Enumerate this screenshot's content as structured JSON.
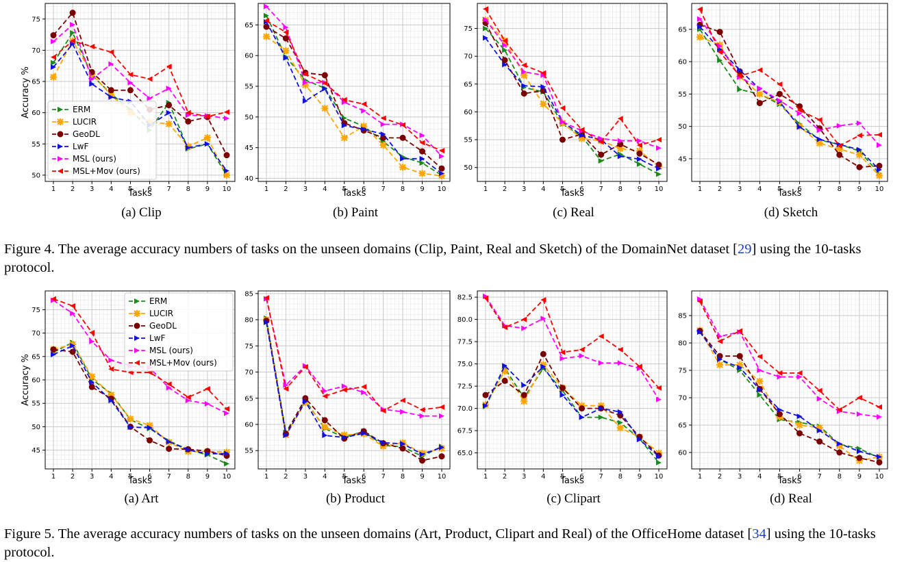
{
  "figures": [
    {
      "caption": {
        "label": "Figure 4.",
        "text": " The average accuracy numbers of tasks on the unseen domains (Clip, Paint, Real and Sketch) of the DomainNet dataset [",
        "cite": "29",
        "tail": "] using the 10-tasks protocol."
      }
    },
    {
      "caption": {
        "label": "Figure 5.",
        "text": " The average accuracy numbers of tasks on the unseen domains (Art, Product, Clipart and Real) of the OfficeHome dataset [",
        "cite": "34",
        "tail": "] using the 10-tasks protocol."
      }
    }
  ],
  "series_styles": [
    {
      "name": "ERM",
      "color": "#1a8a1a",
      "marker": "triangle-right"
    },
    {
      "name": "LUCIR",
      "color": "#ffa500",
      "marker": "x"
    },
    {
      "name": "GeoDL",
      "color": "#7a0000",
      "marker": "circle"
    },
    {
      "name": "LwF",
      "color": "#1010e0",
      "marker": "triangle-right"
    },
    {
      "name": "MSL (ours)",
      "color": "#ff00ff",
      "marker": "triangle-right"
    },
    {
      "name": "MSL+Mov (ours)",
      "color": "#ff0000",
      "marker": "triangle-left"
    }
  ],
  "chart_data": [
    {
      "type": "line",
      "subtitle": "(a) Clip",
      "xlabel": "Tasks",
      "ylabel": "Accuracy %",
      "x": [
        1,
        2,
        3,
        4,
        5,
        6,
        7,
        8,
        9,
        10
      ],
      "ylim": [
        49,
        77.5
      ],
      "yticks": [
        50,
        55,
        60,
        65,
        70,
        75
      ],
      "legend": "lower-left",
      "series": [
        {
          "name": "ERM",
          "values": [
            68.0,
            72.8,
            66.0,
            63.0,
            60.5,
            57.2,
            61.6,
            54.2,
            55.0,
            50.0
          ]
        },
        {
          "name": "LUCIR",
          "values": [
            65.7,
            71.5,
            66.2,
            62.8,
            60.0,
            58.5,
            58.2,
            54.6,
            56.0,
            50.0
          ]
        },
        {
          "name": "GeoDL",
          "values": [
            72.4,
            76.0,
            66.5,
            63.6,
            63.6,
            60.5,
            61.2,
            58.6,
            59.3,
            53.2
          ]
        },
        {
          "name": "LwF",
          "values": [
            67.3,
            71.0,
            64.6,
            62.5,
            61.8,
            58.0,
            60.0,
            54.4,
            55.0,
            50.7
          ]
        },
        {
          "name": "MSL (ours)",
          "values": [
            71.4,
            74.1,
            65.4,
            67.8,
            64.8,
            62.3,
            63.9,
            59.6,
            59.5,
            59.1
          ]
        },
        {
          "name": "MSL+Mov (ours)",
          "values": [
            68.9,
            71.5,
            70.6,
            69.7,
            66.1,
            65.4,
            67.4,
            60.0,
            59.4,
            60.1
          ]
        }
      ]
    },
    {
      "type": "line",
      "subtitle": "(b) Paint",
      "xlabel": "Tasks",
      "ylabel": "",
      "x": [
        1,
        2,
        3,
        4,
        5,
        6,
        7,
        8,
        9,
        10
      ],
      "ylim": [
        39.5,
        68.5
      ],
      "yticks": [
        40,
        45,
        50,
        55,
        60,
        65
      ],
      "legend": "none",
      "series": [
        {
          "name": "ERM",
          "values": [
            66.5,
            59.8,
            56.0,
            54.7,
            49.8,
            48.5,
            46.0,
            43.5,
            42.5,
            40.5
          ]
        },
        {
          "name": "LUCIR",
          "values": [
            63.1,
            60.8,
            55.2,
            51.4,
            46.6,
            48.5,
            45.4,
            41.8,
            40.8,
            40.4
          ]
        },
        {
          "name": "GeoDL",
          "values": [
            64.7,
            62.8,
            57.2,
            56.8,
            49.0,
            47.8,
            46.6,
            46.6,
            44.4,
            41.6
          ]
        },
        {
          "name": "LwF",
          "values": [
            65.5,
            59.6,
            52.6,
            54.6,
            48.6,
            48.0,
            47.2,
            43.2,
            43.2,
            40.8
          ]
        },
        {
          "name": "MSL (ours)",
          "values": [
            68.0,
            64.6,
            55.6,
            55.6,
            52.4,
            51.0,
            48.8,
            48.8,
            47.0,
            43.6
          ]
        },
        {
          "name": "MSL+Mov (ours)",
          "values": [
            65.7,
            63.8,
            57.0,
            55.5,
            52.8,
            52.1,
            49.8,
            48.7,
            45.8,
            44.5
          ]
        }
      ]
    },
    {
      "type": "line",
      "subtitle": "(c) Real",
      "xlabel": "Tasks",
      "ylabel": "",
      "x": [
        1,
        2,
        3,
        4,
        5,
        6,
        7,
        8,
        9,
        10
      ],
      "ylim": [
        47.5,
        79.5
      ],
      "yticks": [
        50,
        55,
        60,
        65,
        70,
        75
      ],
      "legend": "none",
      "series": [
        {
          "name": "ERM",
          "values": [
            75.0,
            71.1,
            64.4,
            63.6,
            57.8,
            55.6,
            51.2,
            52.4,
            50.6,
            48.8
          ]
        },
        {
          "name": "LUCIR",
          "values": [
            76.5,
            72.8,
            66.6,
            61.4,
            58.0,
            55.2,
            54.8,
            53.4,
            53.0,
            50.2
          ]
        },
        {
          "name": "GeoDL",
          "values": [
            76.0,
            69.3,
            63.3,
            63.8,
            55.0,
            56.0,
            52.3,
            54.2,
            52.5,
            50.5
          ]
        },
        {
          "name": "LwF",
          "values": [
            73.3,
            68.5,
            64.7,
            64.5,
            58.2,
            55.8,
            55.0,
            52.0,
            51.5,
            49.8
          ]
        },
        {
          "name": "MSL (ours)",
          "values": [
            76.6,
            72.0,
            67.2,
            66.6,
            58.2,
            56.6,
            55.2,
            54.8,
            54.8,
            53.5
          ]
        },
        {
          "name": "MSL+Mov (ours)",
          "values": [
            78.5,
            72.8,
            68.4,
            67.0,
            60.7,
            56.8,
            54.6,
            58.8,
            54.0,
            55.0
          ]
        }
      ]
    },
    {
      "type": "line",
      "subtitle": "(d) Sketch",
      "xlabel": "Tasks",
      "ylabel": "",
      "x": [
        1,
        2,
        3,
        4,
        5,
        6,
        7,
        8,
        9,
        10
      ],
      "ylim": [
        41.5,
        69
      ],
      "yticks": [
        45,
        50,
        55,
        60,
        65
      ],
      "legend": "none",
      "series": [
        {
          "name": "ERM",
          "values": [
            65.0,
            60.2,
            55.7,
            55.0,
            53.4,
            50.4,
            47.9,
            47.2,
            46.2,
            42.7
          ]
        },
        {
          "name": "LUCIR",
          "values": [
            63.8,
            62.6,
            57.7,
            55.0,
            53.7,
            50.0,
            47.4,
            46.5,
            45.6,
            42.4
          ]
        },
        {
          "name": "GeoDL",
          "values": [
            65.7,
            64.6,
            58.5,
            53.6,
            55.0,
            53.1,
            49.7,
            45.6,
            43.7,
            43.9
          ]
        },
        {
          "name": "LwF",
          "values": [
            65.4,
            61.9,
            58.7,
            55.8,
            53.8,
            49.9,
            48.0,
            47.2,
            46.4,
            43.3
          ]
        },
        {
          "name": "MSL (ours)",
          "values": [
            66.6,
            62.4,
            57.6,
            55.9,
            54.0,
            52.0,
            49.4,
            50.1,
            50.5,
            47.1
          ]
        },
        {
          "name": "MSL+Mov (ours)",
          "values": [
            68.1,
            61.5,
            57.8,
            58.7,
            56.5,
            52.5,
            51.0,
            47.0,
            48.6,
            48.7
          ]
        }
      ]
    },
    {
      "type": "line",
      "subtitle": "(a) Art",
      "xlabel": "Tasks",
      "ylabel": "Accuracy %",
      "x": [
        1,
        2,
        3,
        4,
        5,
        6,
        7,
        8,
        9,
        10
      ],
      "ylim": [
        41,
        79
      ],
      "yticks": [
        45,
        50,
        55,
        60,
        65,
        70,
        75
      ],
      "legend": "upper-right",
      "series": [
        {
          "name": "ERM",
          "values": [
            65.9,
            68.0,
            60.1,
            57.1,
            51.5,
            49.6,
            47.0,
            45.1,
            44.0,
            42.1
          ]
        },
        {
          "name": "LUCIR",
          "values": [
            66.5,
            67.6,
            60.7,
            56.8,
            51.7,
            50.3,
            46.7,
            44.7,
            44.7,
            44.6
          ]
        },
        {
          "name": "GeoDL",
          "values": [
            66.5,
            66.0,
            58.5,
            56.0,
            50.0,
            47.1,
            45.3,
            45.2,
            44.8,
            43.8
          ]
        },
        {
          "name": "LwF",
          "values": [
            65.4,
            67.3,
            59.5,
            55.6,
            49.9,
            49.8,
            46.8,
            45.1,
            44.2,
            44.3
          ]
        },
        {
          "name": "MSL (ours)",
          "values": [
            77.0,
            74.2,
            68.2,
            64.2,
            63.0,
            62.6,
            58.3,
            55.6,
            54.9,
            52.9
          ]
        },
        {
          "name": "MSL+Mov (ours)",
          "values": [
            77.3,
            75.8,
            70.1,
            62.3,
            61.6,
            61.6,
            59.1,
            56.3,
            58.1,
            53.8
          ]
        }
      ]
    },
    {
      "type": "line",
      "subtitle": "(b) Product",
      "xlabel": "Tasks",
      "ylabel": "",
      "x": [
        1,
        2,
        3,
        4,
        5,
        6,
        7,
        8,
        9,
        10
      ],
      "ylim": [
        51.5,
        85.5
      ],
      "yticks": [
        55,
        60,
        65,
        70,
        75,
        80,
        85
      ],
      "legend": "none",
      "series": [
        {
          "name": "ERM",
          "values": [
            80.3,
            58.5,
            64.6,
            59.2,
            57.5,
            58.7,
            56.0,
            55.7,
            53.9,
            55.8
          ]
        },
        {
          "name": "LUCIR",
          "values": [
            80.0,
            58.0,
            64.2,
            59.5,
            58.0,
            58.2,
            55.8,
            56.5,
            54.5,
            55.4
          ]
        },
        {
          "name": "GeoDL",
          "values": [
            79.8,
            58.2,
            65.0,
            60.8,
            57.3,
            58.7,
            56.4,
            55.4,
            53.1,
            53.9
          ]
        },
        {
          "name": "LwF",
          "values": [
            79.5,
            57.9,
            64.4,
            57.9,
            57.5,
            58.3,
            56.5,
            56.3,
            54.3,
            55.6
          ]
        },
        {
          "name": "MSL (ours)",
          "values": [
            84.0,
            67.5,
            71.2,
            66.4,
            67.3,
            66.1,
            62.9,
            62.4,
            61.6,
            61.6
          ]
        },
        {
          "name": "MSL+Mov (ours)",
          "values": [
            84.2,
            66.8,
            71.0,
            65.4,
            66.6,
            67.2,
            62.6,
            64.6,
            62.8,
            63.3
          ]
        }
      ]
    },
    {
      "type": "line",
      "subtitle": "(c) Clipart",
      "xlabel": "Tasks",
      "ylabel": "",
      "x": [
        1,
        2,
        3,
        4,
        5,
        6,
        7,
        8,
        9,
        10
      ],
      "ylim": [
        63.2,
        83.2
      ],
      "yticks": [
        65.0,
        67.5,
        70.0,
        72.5,
        75.0,
        77.5,
        80.0,
        82.5
      ],
      "legend": "none",
      "series": [
        {
          "name": "ERM",
          "values": [
            70.2,
            74.5,
            71.2,
            74.5,
            72.0,
            69.0,
            69.0,
            68.4,
            66.6,
            63.9
          ]
        },
        {
          "name": "LUCIR",
          "values": [
            70.4,
            74.2,
            70.8,
            74.9,
            72.3,
            70.3,
            70.3,
            67.8,
            66.8,
            65.0
          ]
        },
        {
          "name": "GeoDL",
          "values": [
            71.5,
            73.1,
            71.5,
            76.1,
            72.3,
            70.0,
            70.0,
            69.2,
            66.8,
            64.7
          ]
        },
        {
          "name": "LwF",
          "values": [
            70.3,
            74.8,
            72.6,
            74.7,
            71.5,
            69.0,
            70.0,
            69.6,
            66.5,
            64.6
          ]
        },
        {
          "name": "MSL (ours)",
          "values": [
            82.6,
            79.3,
            79.0,
            80.1,
            75.6,
            75.9,
            75.1,
            75.1,
            74.5,
            71.0
          ]
        },
        {
          "name": "MSL+Mov (ours)",
          "values": [
            82.4,
            79.1,
            80.0,
            82.2,
            76.3,
            76.6,
            78.1,
            76.6,
            74.7,
            72.3
          ]
        }
      ]
    },
    {
      "type": "line",
      "subtitle": "(d) Real",
      "xlabel": "Tasks",
      "ylabel": "",
      "x": [
        1,
        2,
        3,
        4,
        5,
        6,
        7,
        8,
        9,
        10
      ],
      "ylim": [
        57,
        89.5
      ],
      "yticks": [
        60,
        65,
        70,
        75,
        80,
        85
      ],
      "legend": "none",
      "series": [
        {
          "name": "ERM",
          "values": [
            82.0,
            77.0,
            75.0,
            70.5,
            66.0,
            65.5,
            64.8,
            61.5,
            60.7,
            59.0
          ]
        },
        {
          "name": "LUCIR",
          "values": [
            82.3,
            76.0,
            76.0,
            73.0,
            66.5,
            65.0,
            64.5,
            61.2,
            58.5,
            59.2
          ]
        },
        {
          "name": "GeoDL",
          "values": [
            82.2,
            77.6,
            77.6,
            71.6,
            67.0,
            63.5,
            62.0,
            60.0,
            59.0,
            58.2
          ]
        },
        {
          "name": "LwF",
          "values": [
            82.0,
            77.0,
            75.5,
            71.5,
            67.8,
            66.6,
            64.0,
            61.6,
            60.2,
            59.2
          ]
        },
        {
          "name": "MSL (ours)",
          "values": [
            88.0,
            81.2,
            82.0,
            75.0,
            73.8,
            73.8,
            69.8,
            67.5,
            67.0,
            66.5
          ]
        },
        {
          "name": "MSL+Mov (ours)",
          "values": [
            87.6,
            80.3,
            82.2,
            77.5,
            74.5,
            74.5,
            71.3,
            67.8,
            70.0,
            68.3
          ]
        }
      ]
    }
  ]
}
